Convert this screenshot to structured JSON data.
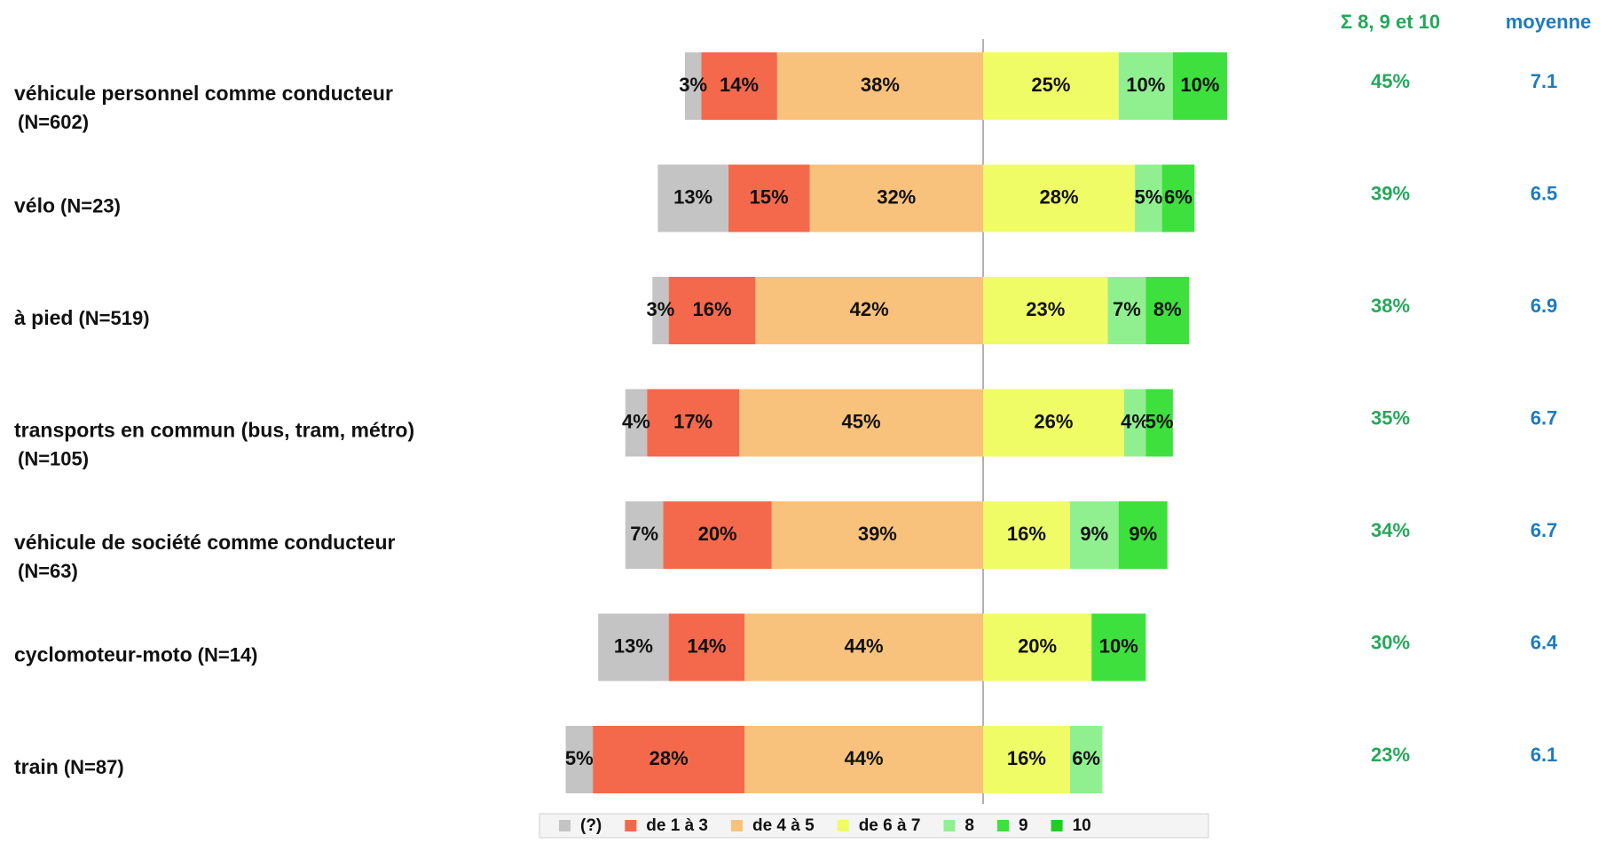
{
  "chart_data": {
    "type": "diverging_bar",
    "categories": [
      "véhicule personnel comme conducteur",
      "vélo",
      "à pied",
      "transports en commun (bus, tram, métro)",
      "véhicule de société comme conducteur",
      "cyclomoteur-moto",
      "train"
    ],
    "sample_sizes": [
      "(N=602)",
      "(N=23)",
      "(N=519)",
      "(N=105)",
      "(N=63)",
      "(N=14)",
      "(N=87)"
    ],
    "series": [
      {
        "name": "(?)",
        "color": "#c4c4c4",
        "side": "left",
        "values": [
          3,
          13,
          3,
          4,
          7,
          13,
          5
        ],
        "value_labels": [
          "3%",
          "13%",
          "3%",
          "4%",
          "7%",
          "13%",
          "5%"
        ]
      },
      {
        "name": "de 1 à 3",
        "color": "#f4694c",
        "side": "left",
        "values": [
          14,
          15,
          16,
          17,
          20,
          14,
          28
        ],
        "value_labels": [
          "14%",
          "15%",
          "16%",
          "17%",
          "20%",
          "14%",
          "28%"
        ]
      },
      {
        "name": "de 4 à 5",
        "color": "#f9c27c",
        "side": "left",
        "values": [
          38,
          32,
          42,
          45,
          39,
          44,
          44
        ],
        "value_labels": [
          "38%",
          "32%",
          "42%",
          "45%",
          "39%",
          "44%",
          "44%"
        ]
      },
      {
        "name": "de 6 à 7",
        "color": "#effc66",
        "side": "right",
        "values": [
          25,
          28,
          23,
          26,
          16,
          20,
          16
        ],
        "value_labels": [
          "25%",
          "28%",
          "23%",
          "26%",
          "16%",
          "20%",
          "16%"
        ]
      },
      {
        "name": "8",
        "color": "#90f090",
        "side": "right",
        "values": [
          10,
          5,
          7,
          4,
          9,
          null,
          6
        ],
        "value_labels": [
          "10%",
          "5%",
          "7%",
          "4%",
          "9%",
          null,
          "6%"
        ]
      },
      {
        "name": "9",
        "color": "#3ee03e",
        "side": "right",
        "values": [
          10,
          6,
          8,
          5,
          9,
          10,
          null
        ],
        "value_labels": [
          "10%",
          "6%",
          "8%",
          "5%",
          "9%",
          "10%",
          null
        ]
      },
      {
        "name": "10",
        "color": "#22cc22",
        "side": "right",
        "values": [
          null,
          null,
          null,
          null,
          null,
          null,
          null
        ],
        "value_labels": [
          null,
          null,
          null,
          null,
          null,
          null,
          null
        ]
      }
    ],
    "sum_header": "Σ 8, 9 et 10",
    "sum_values": [
      45,
      39,
      38,
      35,
      34,
      30,
      23
    ],
    "sum_value_labels": [
      "45%",
      "39%",
      "38%",
      "35%",
      "34%",
      "30%",
      "23%"
    ],
    "mean_header": "moyenne",
    "mean_values": [
      7.1,
      6.5,
      6.9,
      6.7,
      6.7,
      6.4,
      6.1
    ]
  }
}
